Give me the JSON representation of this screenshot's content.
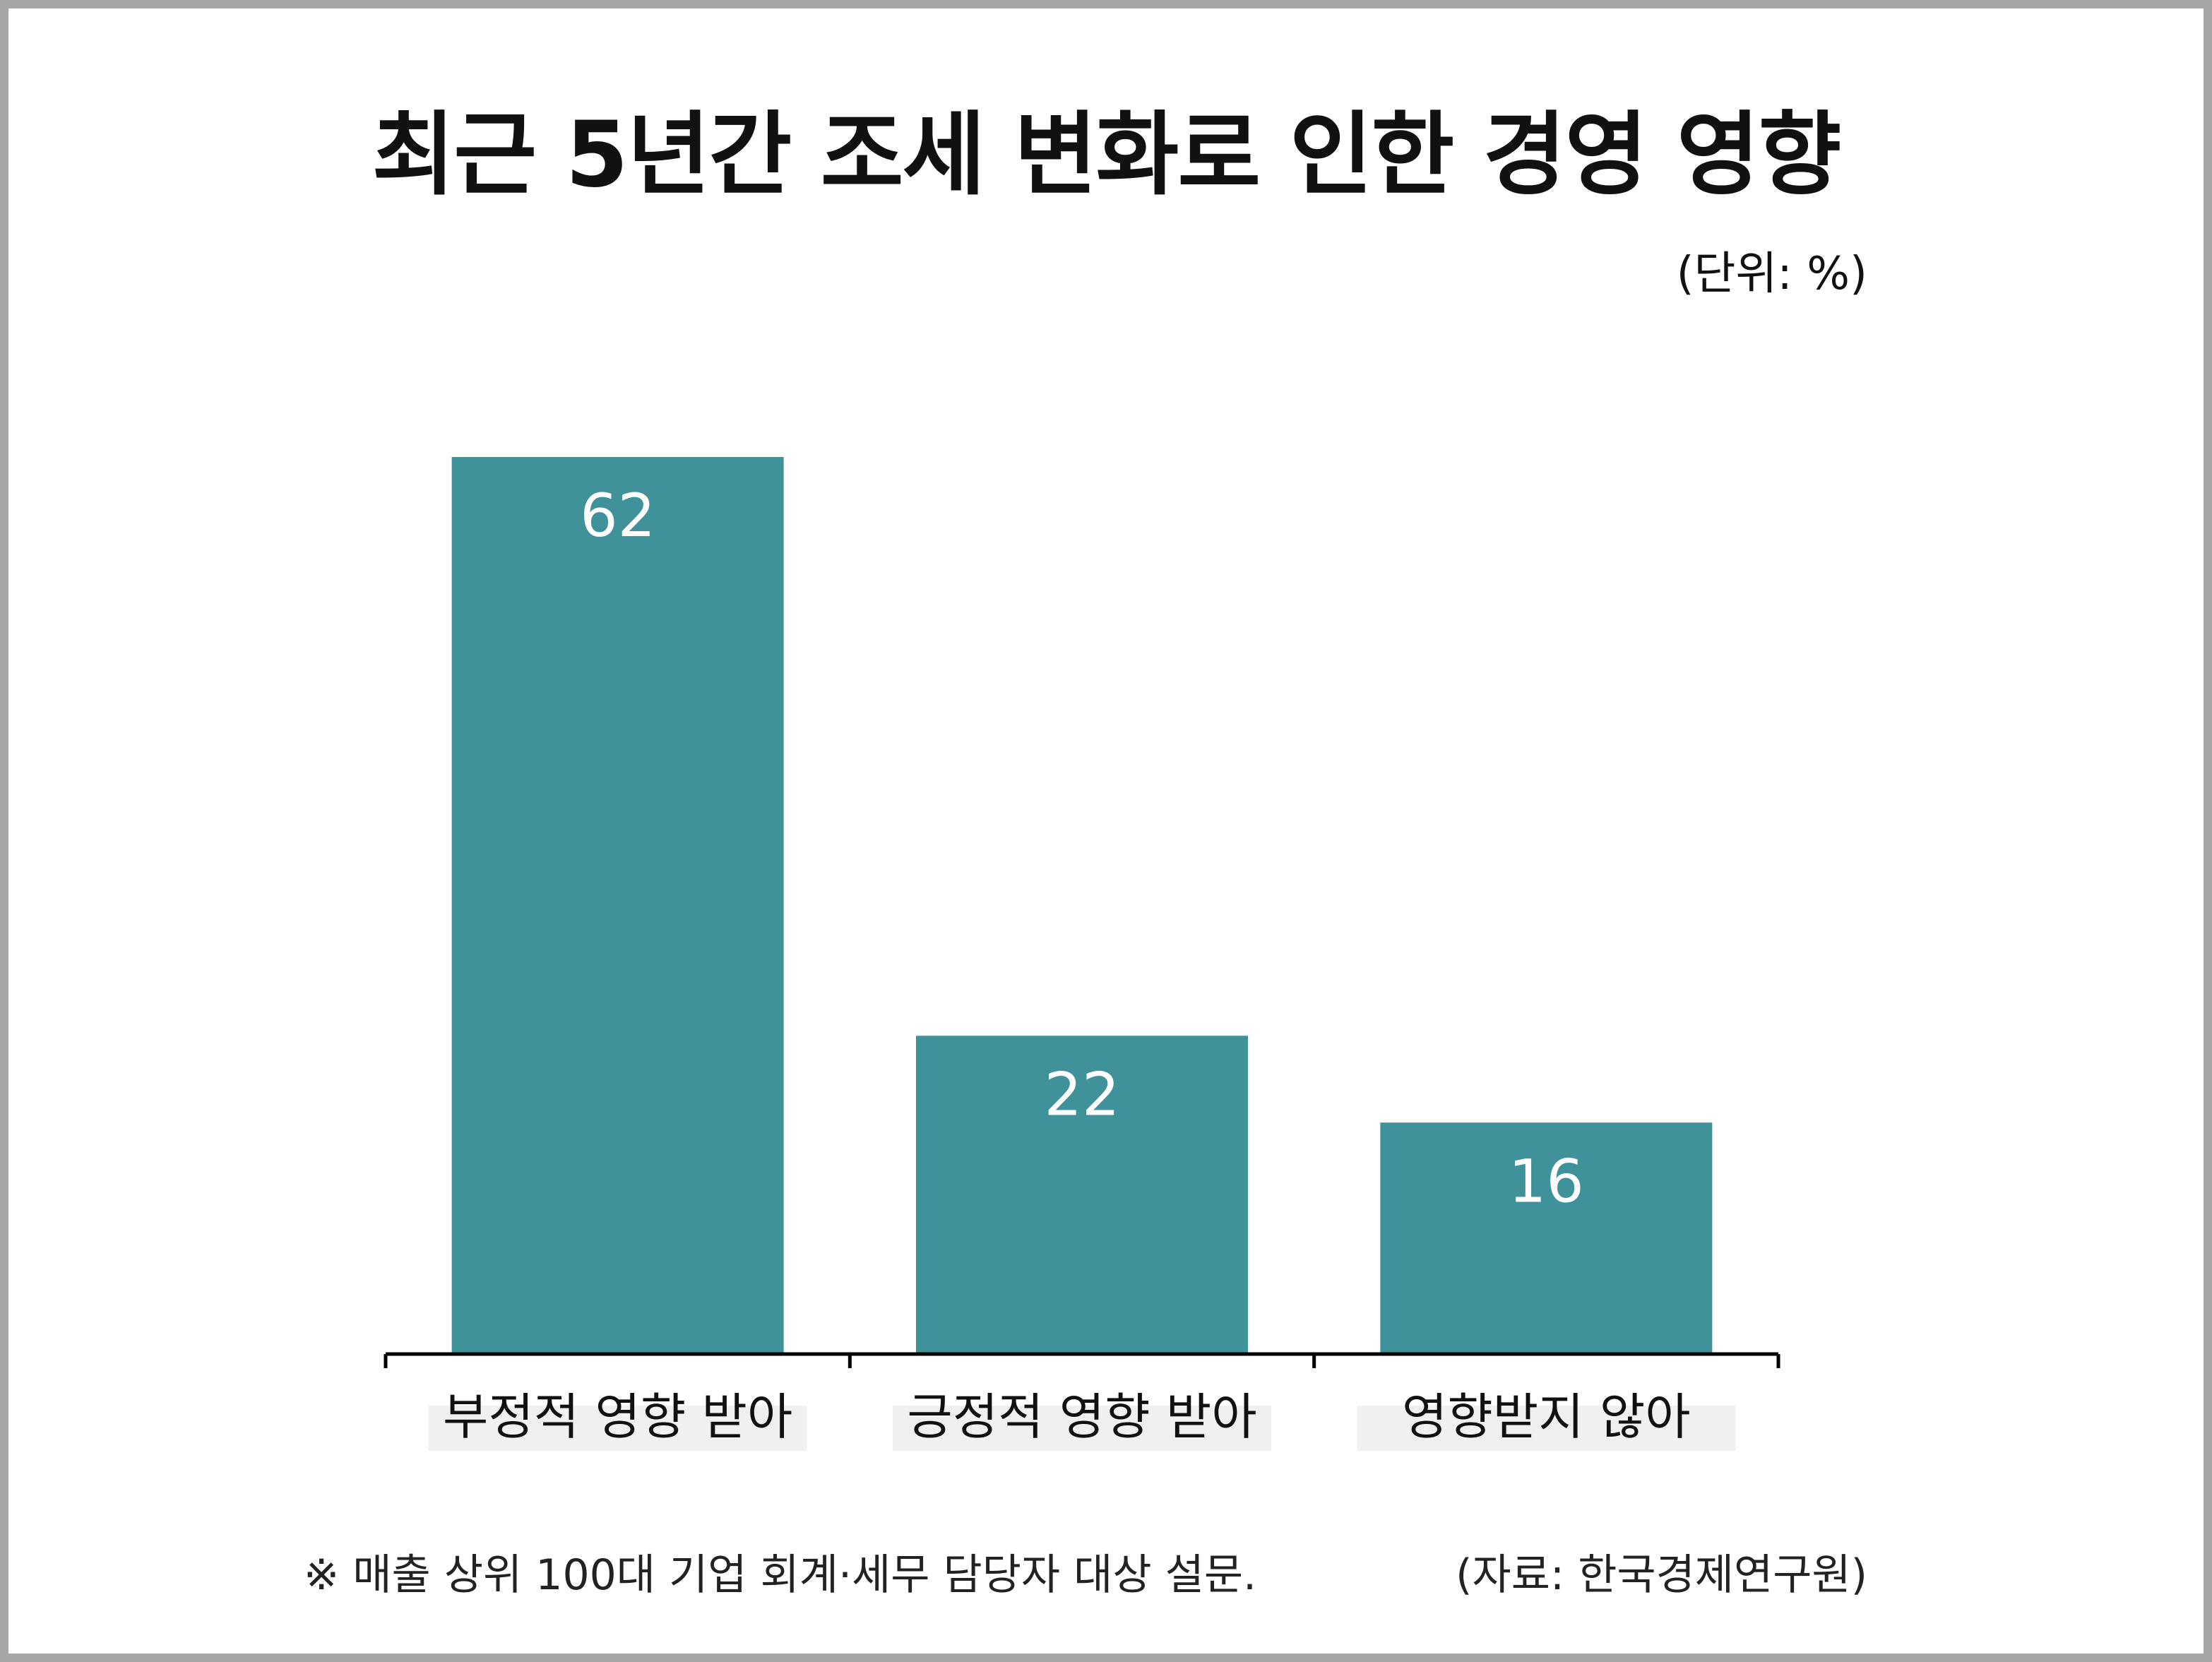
{
  "chart_data": {
    "type": "bar",
    "title": "최근 5년간 조세 변화로 인한 경영 영향",
    "unit_label": "(단위: %)",
    "categories": [
      "부정적 영향 받아",
      "긍정적 영향 받아",
      "영향받지 않아"
    ],
    "values": [
      62,
      22,
      16
    ],
    "ylim": [
      0,
      72
    ],
    "grid": false,
    "legend": "none",
    "bar_color": "#40929a",
    "value_label_color": "#ffffff",
    "category_label_bg": "#f0f0f0"
  },
  "footnote": "※ 매출 상위 100대 기업 회계·세무 담당자 대상 설문.",
  "source": "(자료: 한국경제연구원)",
  "colors": {
    "frame_border": "#a6a6a6",
    "axis": "#000000",
    "text": "#111111"
  }
}
